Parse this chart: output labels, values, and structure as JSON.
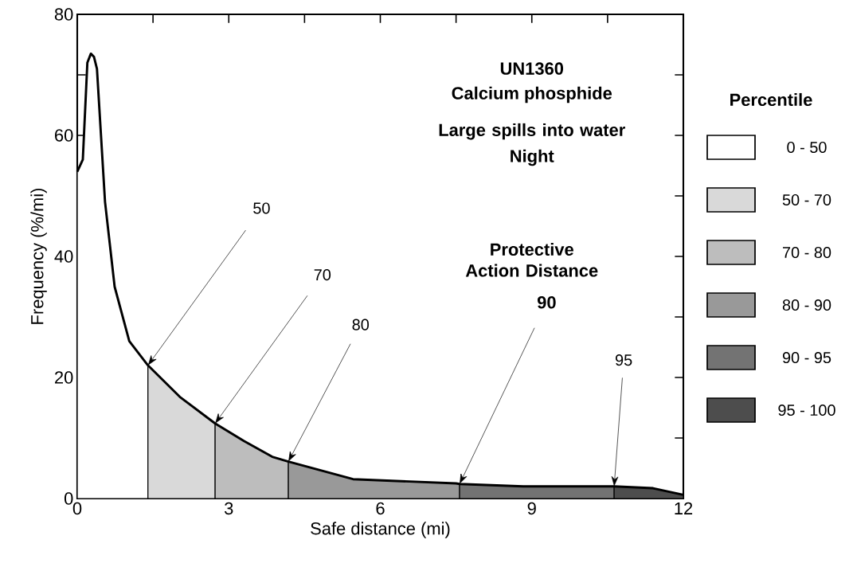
{
  "chart_data": {
    "type": "area",
    "title": "UN1360",
    "subtitle": "Calcium phosphide",
    "xlabel": "Safe distance (mi)",
    "ylabel": "Frequency (%/mi)",
    "legend_title": "Percentile",
    "legend": "right",
    "xlim": [
      0,
      12
    ],
    "ylim": [
      0,
      80
    ],
    "xticks": [
      0,
      {
        "value": 1.5,
        "label": null
      },
      3,
      {
        "value": 4.5,
        "label": null
      },
      6,
      {
        "value": 7.5,
        "label": null
      },
      9,
      {
        "value": 10.5,
        "label": null
      },
      12
    ],
    "yticks": [
      0,
      {
        "value": 10,
        "label": null
      },
      20,
      {
        "value": 30,
        "label": null
      },
      40,
      {
        "value": 50,
        "label": null
      },
      60,
      {
        "value": 70,
        "label": null
      },
      80
    ],
    "series": [
      {
        "type": "line",
        "color": "#000000",
        "x": [
          0,
          0.11,
          0.2,
          0.27,
          0.33,
          0.39,
          0.55,
          0.74,
          1.03,
          1.4,
          2.03,
          2.73,
          3.3,
          3.86,
          4.18,
          5.46,
          7.5,
          7.57,
          8.83,
          9.4,
          10.6,
          10.63,
          11.4,
          12
        ],
        "values": [
          54,
          56,
          72,
          73.5,
          73,
          71,
          49,
          35,
          26,
          22,
          16.8,
          12.4,
          9.5,
          6.9,
          6.1,
          3.2,
          2.5,
          2.4,
          2.0,
          2.0,
          2.0,
          2.0,
          1.7,
          0.6
        ]
      },
      {
        "name": "0 - 50",
        "color": "#ffffff",
        "x": [
          0,
          0.11,
          0.2,
          0.27,
          0.33,
          0.39,
          0.55,
          0.74,
          1.03,
          1.4
        ],
        "values": [
          54,
          56,
          72,
          73.5,
          73,
          71,
          49,
          35,
          26,
          22
        ]
      },
      {
        "name": "50 - 70",
        "color": "#d9d9d9",
        "x": [
          1.4,
          2.03,
          2.73
        ],
        "values": [
          22,
          16.8,
          12.4
        ]
      },
      {
        "name": "70 - 80",
        "color": "#bdbdbd",
        "x": [
          2.73,
          3.3,
          3.86,
          4.18
        ],
        "values": [
          12.4,
          9.5,
          6.9,
          6.1
        ]
      },
      {
        "name": "80 - 90",
        "color": "#999999",
        "x": [
          4.18,
          5.46,
          7.5,
          7.57
        ],
        "values": [
          6.1,
          3.2,
          2.5,
          2.4
        ]
      },
      {
        "name": "90 - 95",
        "color": "#737373",
        "x": [
          7.57,
          8.83,
          9.4,
          10.6,
          10.63
        ],
        "values": [
          2.4,
          2.0,
          2.0,
          2.0,
          2.0
        ]
      },
      {
        "name": "95 - 100",
        "color": "#4d4d4d",
        "x": [
          10.63,
          11.4,
          12
        ],
        "values": [
          2.0,
          1.7,
          0.6
        ]
      }
    ],
    "annotations": [
      "Large spills into water",
      "Night",
      "Protective Action Distance",
      {
        "text": "50",
        "x": 1.4,
        "y": 22
      },
      {
        "text": "70",
        "x": 2.73,
        "y": 12.4
      },
      {
        "text": "80",
        "x": 4.18,
        "y": 6.1
      },
      {
        "text": "90",
        "x": 7.57,
        "y": 2.4
      },
      {
        "text": "95",
        "x": 10.63,
        "y": 2.0
      }
    ]
  }
}
